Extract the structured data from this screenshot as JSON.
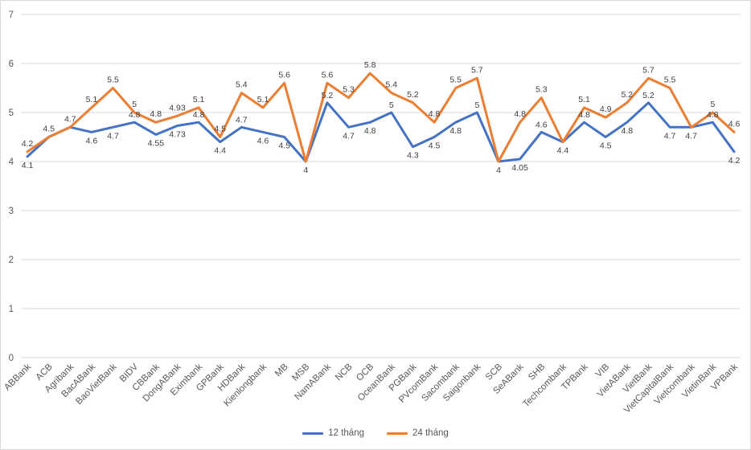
{
  "chart_data": {
    "type": "line",
    "title": "",
    "xlabel": "",
    "ylabel": "",
    "ylim": [
      0,
      7
    ],
    "y_ticks": [
      "0",
      "1",
      "2",
      "3",
      "4",
      "5",
      "6",
      "7"
    ],
    "grid": true,
    "legend_position": "bottom",
    "data_labels": true,
    "categories": [
      "ABBank",
      "ACB",
      "Agribank",
      "BacABank",
      "BaoVietBank",
      "BIDV",
      "CBBank",
      "DongABank",
      "Eximbank",
      "GPBank",
      "HDBank",
      "Kienlongbank",
      "MB",
      "MSB",
      "NamABank",
      "NCB",
      "OCB",
      "OceanBank",
      "PGBank",
      "PVcomBank",
      "Sacombank",
      "Saigonbank",
      "SCB",
      "SeABank",
      "SHB",
      "Techcombank",
      "TPBank",
      "VIB",
      "VietABank",
      "VietBank",
      "VietCapitalBank",
      "Vietcombank",
      "VietinBank",
      "VPBank"
    ],
    "series": [
      {
        "name": "12 tháng",
        "color": "#4472C4",
        "values": [
          4.1,
          4.5,
          4.7,
          4.6,
          4.7,
          4.8,
          4.55,
          4.73,
          4.8,
          4.4,
          4.7,
          4.6,
          4.5,
          4,
          5.2,
          4.7,
          4.8,
          5,
          4.3,
          4.5,
          4.8,
          5,
          4,
          4.05,
          4.6,
          4.4,
          4.8,
          4.5,
          4.8,
          5.2,
          4.7,
          4.7,
          4.8,
          4.2
        ]
      },
      {
        "name": "24 tháng",
        "color": "#ED7D31",
        "values": [
          4.2,
          4.5,
          4.7,
          5.1,
          5.5,
          5,
          4.8,
          4.93,
          5.1,
          4.5,
          5.4,
          5.1,
          5.6,
          4,
          5.6,
          5.3,
          5.8,
          5.4,
          5.2,
          4.8,
          5.5,
          5.7,
          4,
          4.8,
          5.3,
          4.4,
          5.1,
          4.9,
          5.2,
          5.7,
          5.5,
          4.7,
          5,
          4.6
        ]
      }
    ]
  }
}
